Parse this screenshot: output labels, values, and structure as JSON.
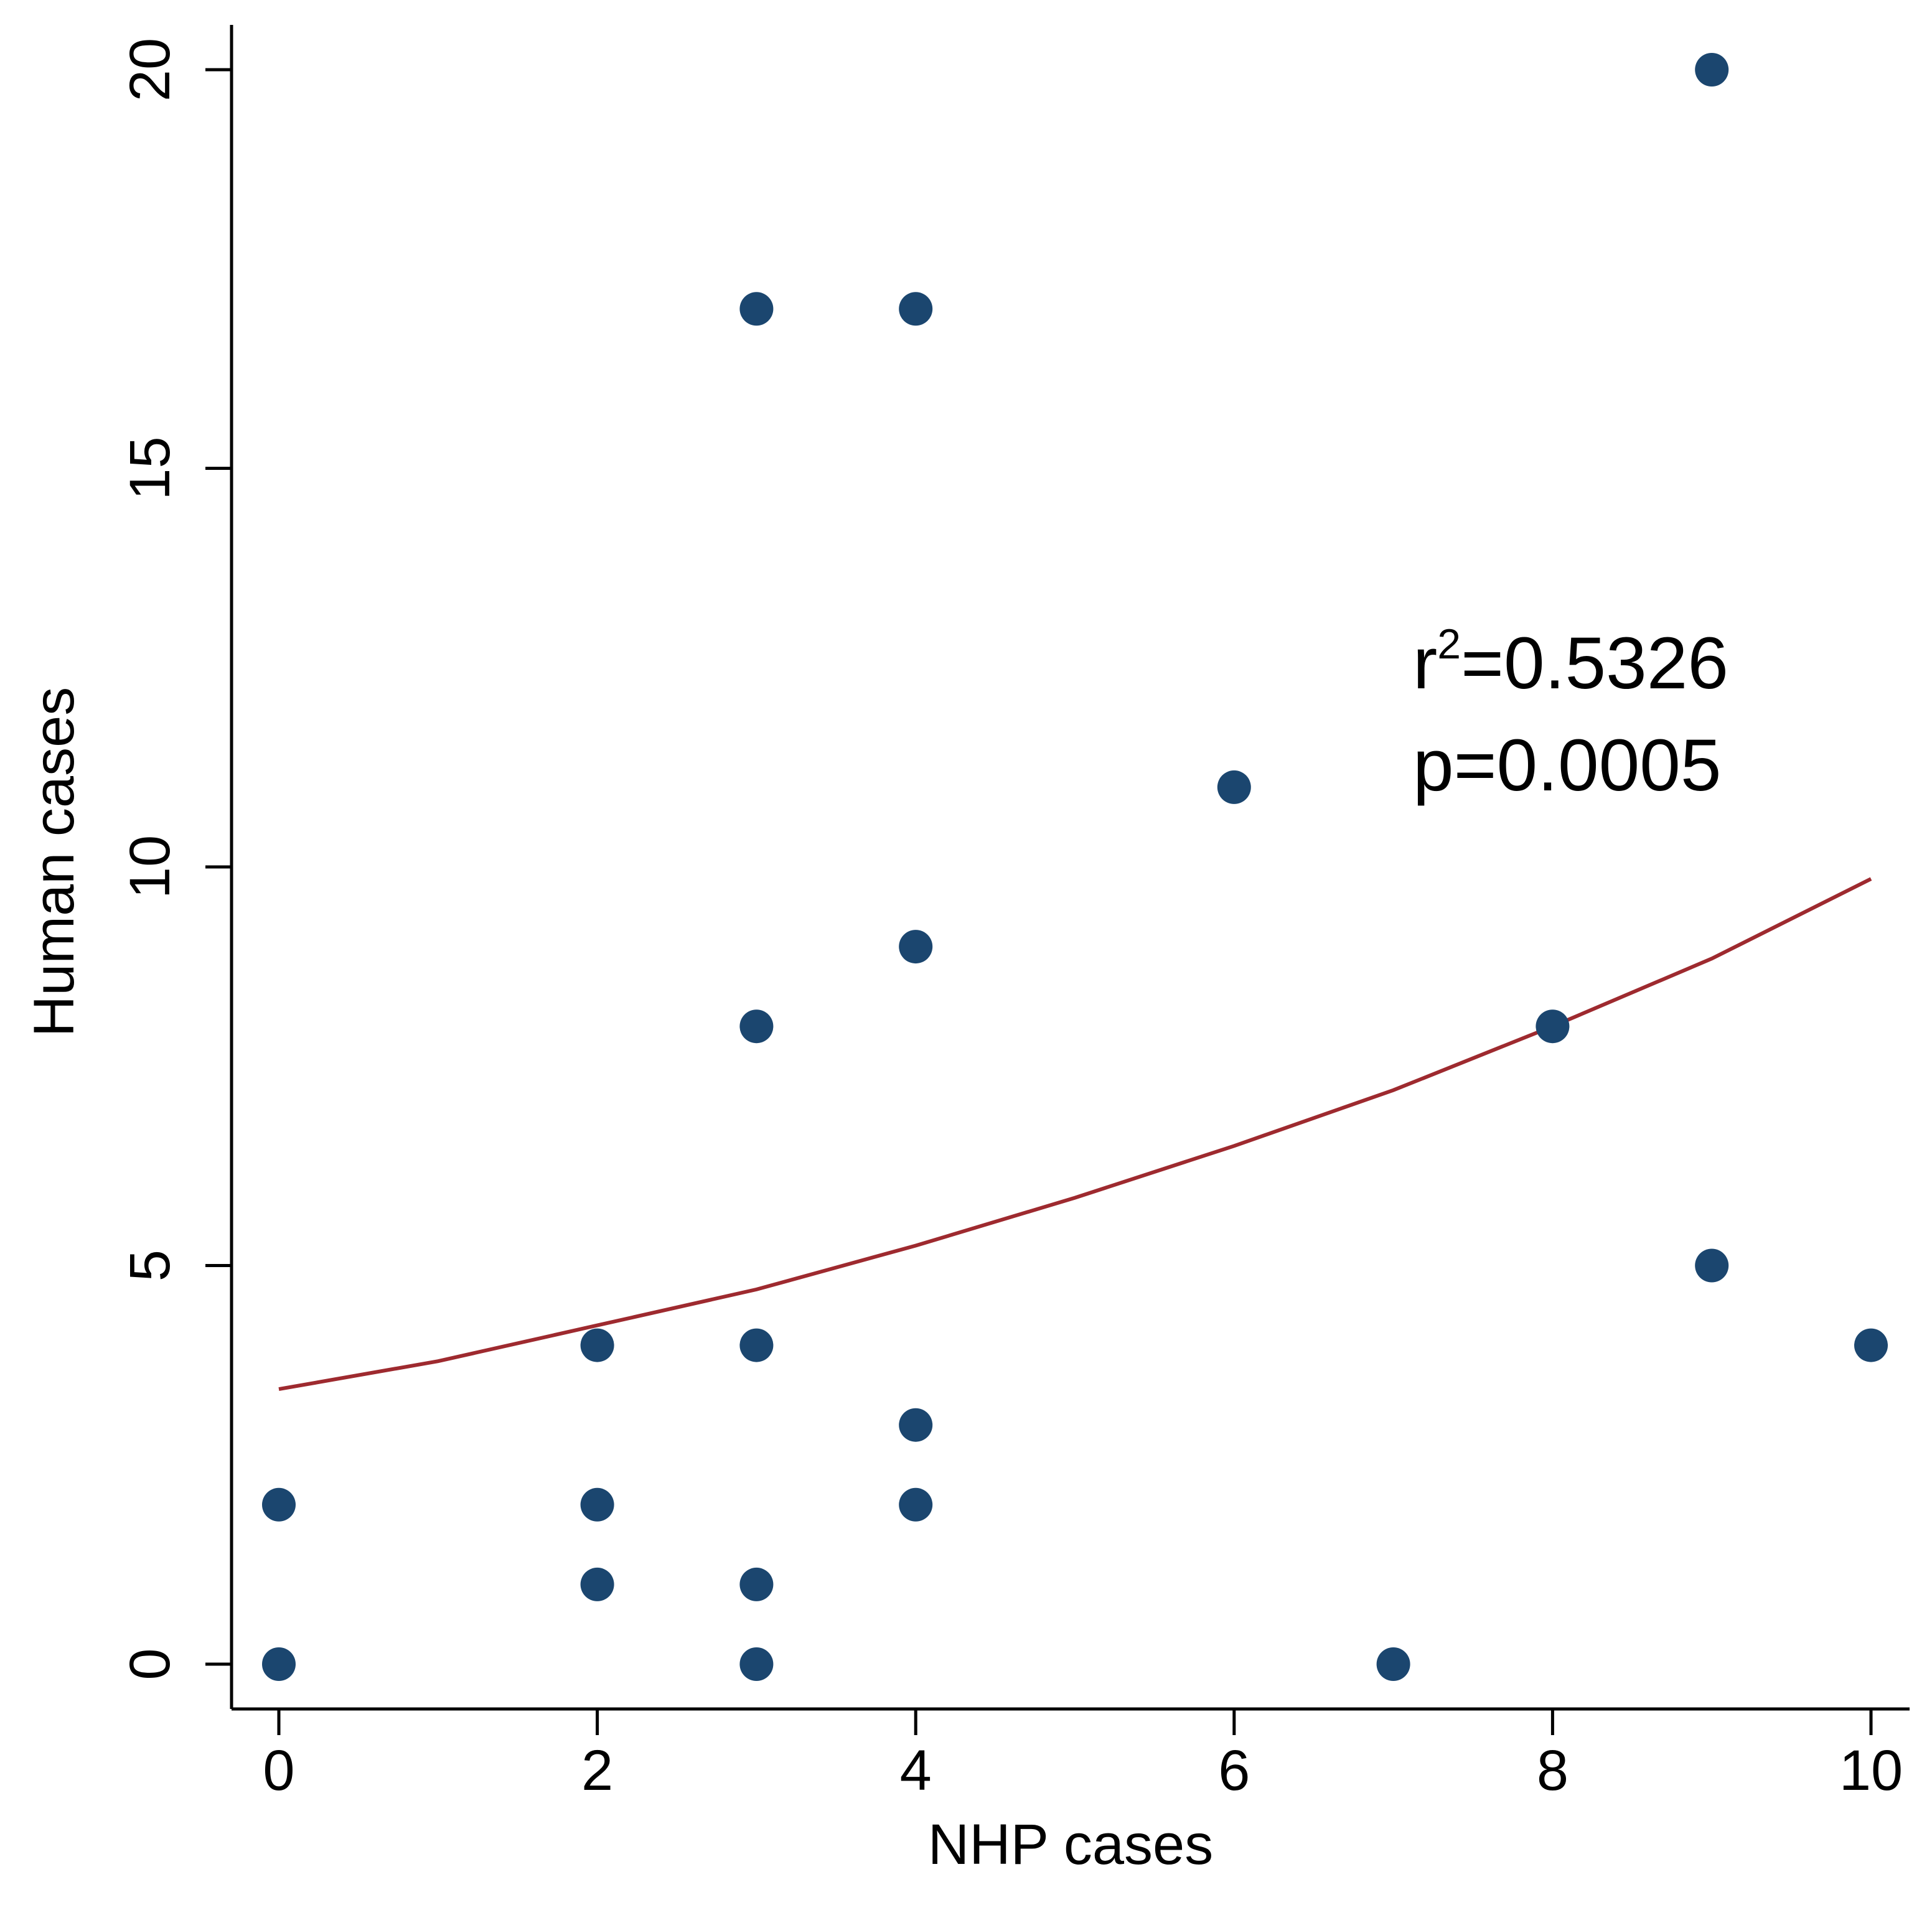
{
  "chart_data": {
    "type": "scatter",
    "xlabel": "NHP cases",
    "ylabel": "Human cases",
    "xlim": [
      0,
      10
    ],
    "ylim": [
      0,
      20
    ],
    "xticks": [
      0,
      2,
      4,
      6,
      8,
      10
    ],
    "yticks": [
      0,
      5,
      10,
      15,
      20
    ],
    "grid": false,
    "points": [
      {
        "x": 0,
        "y": 0
      },
      {
        "x": 0,
        "y": 2
      },
      {
        "x": 2,
        "y": 1
      },
      {
        "x": 2,
        "y": 2
      },
      {
        "x": 2,
        "y": 4
      },
      {
        "x": 3,
        "y": 0
      },
      {
        "x": 3,
        "y": 1
      },
      {
        "x": 3,
        "y": 4
      },
      {
        "x": 3,
        "y": 8
      },
      {
        "x": 3,
        "y": 17
      },
      {
        "x": 4,
        "y": 2
      },
      {
        "x": 4,
        "y": 3
      },
      {
        "x": 4,
        "y": 9
      },
      {
        "x": 4,
        "y": 17
      },
      {
        "x": 6,
        "y": 11
      },
      {
        "x": 7,
        "y": 0
      },
      {
        "x": 8,
        "y": 8
      },
      {
        "x": 9,
        "y": 5
      },
      {
        "x": 9,
        "y": 20
      },
      {
        "x": 10,
        "y": 4
      }
    ],
    "fit_curve": {
      "x": [
        0,
        1,
        2,
        3,
        4,
        5,
        6,
        7,
        8,
        9,
        10
      ],
      "y": [
        3.45,
        3.8,
        4.25,
        4.7,
        5.25,
        5.85,
        6.5,
        7.2,
        8.0,
        8.85,
        9.85
      ]
    },
    "annotations": [
      {
        "base": "r",
        "sup": "2",
        "rest": "=0.5326"
      },
      {
        "text": "p=0.0005"
      }
    ],
    "colors": {
      "points": "#1b466f",
      "fit": "#9e2a2f",
      "axis": "#000000"
    }
  }
}
